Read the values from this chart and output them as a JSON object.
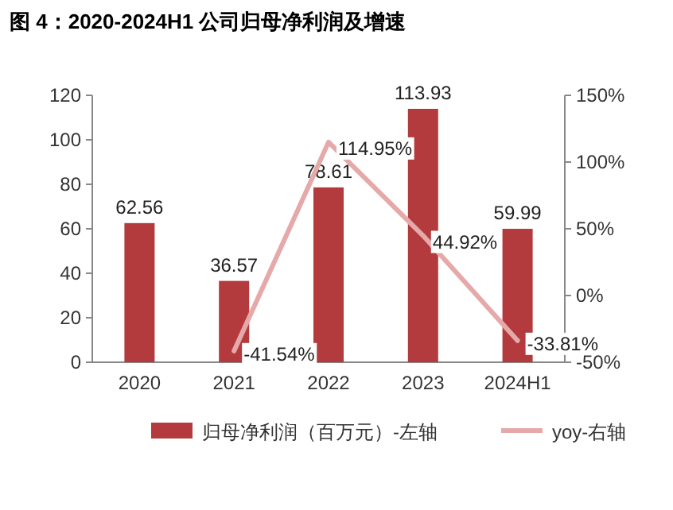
{
  "chart_data": {
    "type": "bar",
    "title": "图 4：2020-2024H1 公司归母净利润及增速",
    "categories": [
      "2020",
      "2021",
      "2022",
      "2023",
      "2024H1"
    ],
    "ylim": [
      0,
      120
    ],
    "yticks": [
      0,
      20,
      40,
      60,
      80,
      100,
      120
    ],
    "y2lim": [
      -50,
      150
    ],
    "y2ticks": [
      {
        "value": -50,
        "label": "-50%"
      },
      {
        "value": 0,
        "label": "0%"
      },
      {
        "value": 50,
        "label": "50%"
      },
      {
        "value": 100,
        "label": "100%"
      },
      {
        "value": 150,
        "label": "150%"
      }
    ],
    "legend": "bottom",
    "grid": false,
    "series": [
      {
        "name": "归母净利润（百万元）-左轴",
        "color": "#b33b3d",
        "values": [
          62.56,
          36.57,
          78.61,
          113.93,
          59.99
        ],
        "value_labels": [
          "62.56",
          "36.57",
          "78.61",
          "113.93",
          "59.99"
        ]
      },
      {
        "name": "yoy-右轴",
        "type": "line",
        "axis": "y2",
        "color": "#e6a9a9",
        "values": [
          null,
          -41.54,
          114.95,
          44.92,
          -33.81
        ],
        "value_labels": [
          null,
          "-41.54%",
          "114.95%",
          "44.92%",
          "-33.81%"
        ]
      }
    ]
  }
}
